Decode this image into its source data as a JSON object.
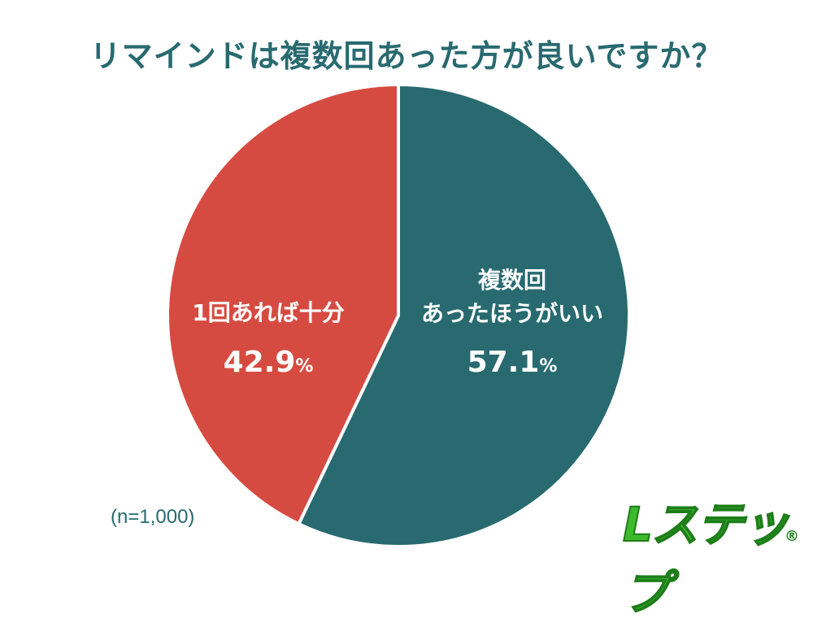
{
  "title": "リマインドは複数回あった方が良いですか？",
  "sample_size": "(n=1,000)",
  "logo_text": "Lステップ",
  "logo_registered": "®",
  "colors": {
    "series_a": "#d64b41",
    "series_b": "#286a70",
    "title": "#286a70"
  },
  "chart_data": {
    "type": "pie",
    "start_angle_deg": 0,
    "direction": "clockwise",
    "slices": [
      {
        "label_lines": [
          "複数回",
          "あったほうがいい"
        ],
        "value": 57.1,
        "value_text": "57.1",
        "unit": "%",
        "color": "#286a70"
      },
      {
        "label_lines": [
          "1回あれば十分"
        ],
        "value": 42.9,
        "value_text": "42.9",
        "unit": "%",
        "color": "#d64b41"
      }
    ]
  }
}
